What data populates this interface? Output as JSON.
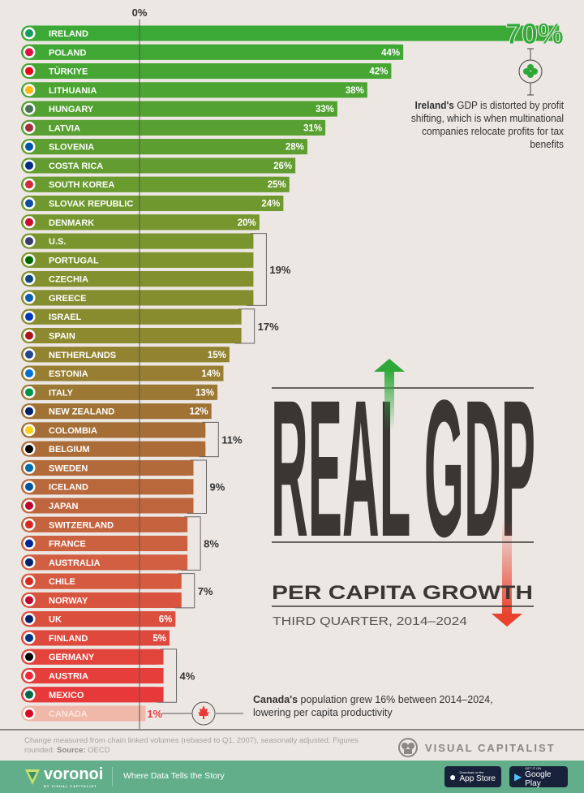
{
  "chart_data": {
    "type": "bar",
    "orientation": "horizontal",
    "title": "REAL GDP",
    "subtitle": "PER CAPITA GROWTH",
    "period": "THIRD QUARTER, 2014–2024",
    "axis_label": "0%",
    "unit": "%",
    "categories": [
      "IRELAND",
      "POLAND",
      "TÜRKIYE",
      "LITHUANIA",
      "HUNGARY",
      "LATVIA",
      "SLOVENIA",
      "COSTA RICA",
      "SOUTH KOREA",
      "SLOVAK REPUBLIC",
      "DENMARK",
      "U.S.",
      "PORTUGAL",
      "CZECHIA",
      "GREECE",
      "ISRAEL",
      "SPAIN",
      "NETHERLANDS",
      "ESTONIA",
      "ITALY",
      "NEW ZEALAND",
      "COLOMBIA",
      "BELGIUM",
      "SWEDEN",
      "ICELAND",
      "JAPAN",
      "SWITZERLAND",
      "FRANCE",
      "AUSTRALIA",
      "CHILE",
      "NORWAY",
      "UK",
      "FINLAND",
      "GERMANY",
      "AUSTRIA",
      "MEXICO",
      "CANADA"
    ],
    "values": [
      70,
      44,
      42,
      38,
      33,
      31,
      28,
      26,
      25,
      24,
      20,
      19,
      19,
      19,
      19,
      17,
      17,
      15,
      14,
      13,
      12,
      11,
      11,
      9,
      9,
      9,
      8,
      8,
      8,
      7,
      7,
      6,
      5,
      4,
      4,
      4,
      1
    ],
    "value_labels": [
      "70%",
      "44%",
      "42%",
      "38%",
      "33%",
      "31%",
      "28%",
      "26%",
      "25%",
      "24%",
      "20%",
      "19%",
      "19%",
      "19%",
      "19%",
      "17%",
      "17%",
      "15%",
      "14%",
      "13%",
      "12%",
      "11%",
      "11%",
      "9%",
      "9%",
      "9%",
      "8%",
      "8%",
      "8%",
      "7%",
      "7%",
      "6%",
      "5%",
      "4%",
      "4%",
      "4%",
      "1%"
    ],
    "grouped_labels": [
      {
        "label": "19%",
        "from": "U.S.",
        "to": "GREECE"
      },
      {
        "label": "17%",
        "from": "ISRAEL",
        "to": "SPAIN"
      },
      {
        "label": "11%",
        "from": "COLOMBIA",
        "to": "BELGIUM"
      },
      {
        "label": "9%",
        "from": "SWEDEN",
        "to": "JAPAN"
      },
      {
        "label": "8%",
        "from": "SWITZERLAND",
        "to": "AUSTRALIA"
      },
      {
        "label": "7%",
        "from": "CHILE",
        "to": "NORWAY"
      },
      {
        "label": "4%",
        "from": "GERMANY",
        "to": "MEXICO"
      }
    ],
    "xlim": [
      0,
      70
    ],
    "grid": false,
    "colors": {
      "high": "#3aa935",
      "mid": "#8c8a2e",
      "low": "#e8393a",
      "canada": "#efb8a8",
      "title": "#3a3634",
      "arrow_up": "#2fa83a",
      "arrow_down": "#e8412e"
    }
  },
  "annotations": {
    "ireland_bold": "Ireland's",
    "ireland_text": " GDP is distorted by profit shifting, which is when multinational companies relocate profits for tax benefits",
    "canada_bold": "Canada's",
    "canada_text": " population grew 16% between 2014–2024, lowering per capita productivity"
  },
  "source": {
    "note": "Change measured from chain linked volumes (rebased to Q1, 2007), seasonally adjusted. Figures rounded. ",
    "source_label": "Source:",
    "source_value": " OECD"
  },
  "branding": {
    "publisher": "VISUAL CAPITALIST",
    "voronoi": "voronoi",
    "voronoi_sub": "BY VISUAL CAPITALIST",
    "tagline": "Where Data Tells the Story",
    "app_store_small": "Download on the",
    "app_store": "App Store",
    "google_play_small": "GET IT ON",
    "google_play": "Google Play"
  }
}
